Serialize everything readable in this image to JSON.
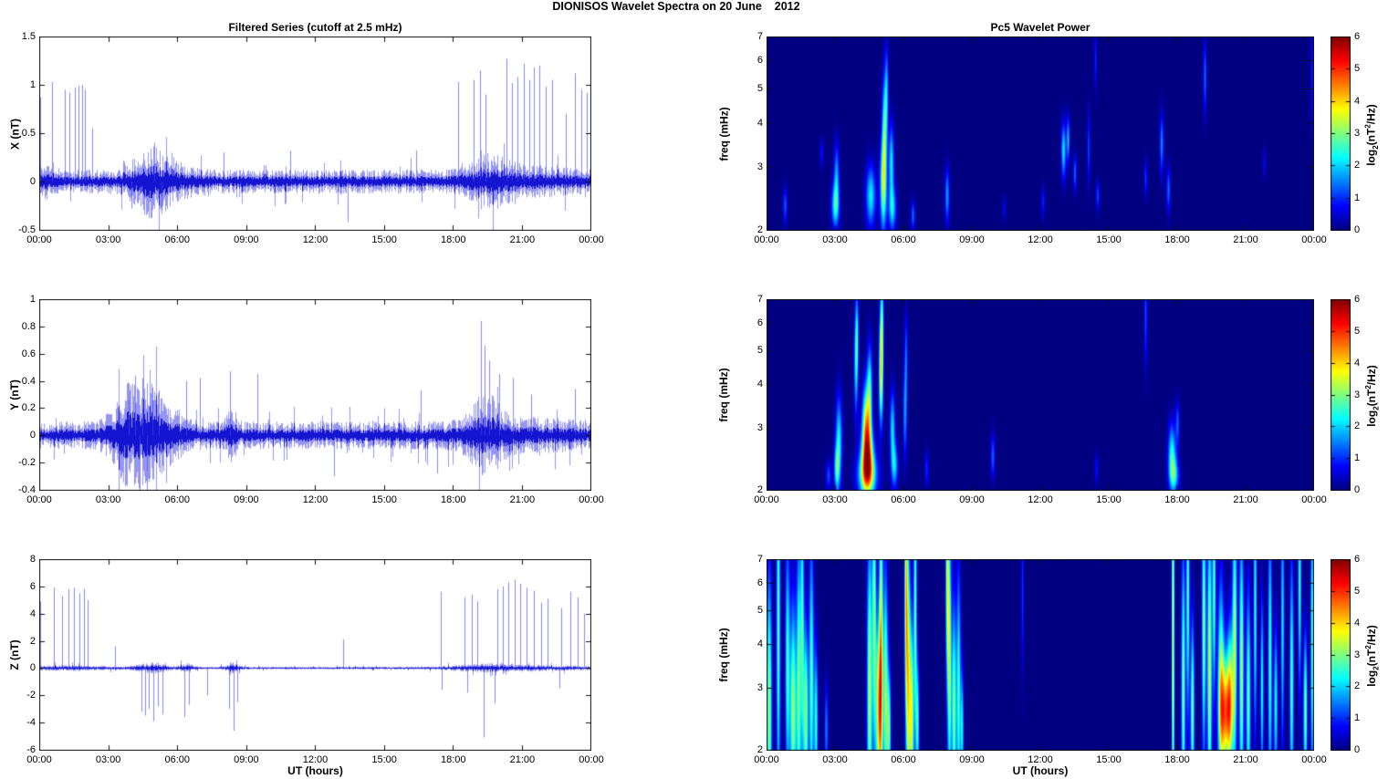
{
  "title": "DIONISOS Wavelet Spectra on 20 June    2012",
  "colors": {
    "series_line": "#0000dd",
    "axis": "#111111",
    "background": "#ffffff",
    "jet_low": "#000080",
    "jet_high": "#800000"
  },
  "x_axis": {
    "label": "UT (hours)",
    "tick_labels": [
      "00:00",
      "03:00",
      "06:00",
      "09:00",
      "12:00",
      "15:00",
      "18:00",
      "21:00",
      "00:00"
    ],
    "range_hours": [
      0,
      24
    ]
  },
  "colorbar": {
    "tick_labels": [
      "0",
      "1",
      "2",
      "3",
      "4",
      "5",
      "6"
    ],
    "range": [
      0,
      6
    ],
    "label_parts": {
      "pre": "log",
      "sub": "2",
      "mid": "(nT",
      "sup": "2",
      "post": "/Hz)"
    }
  },
  "chart_data": [
    {
      "type": "line",
      "name": "X filtered series",
      "title": "Filtered Series (cutoff at 2.5 mHz)",
      "ylabel": "X (nT)",
      "ylim": [
        -0.5,
        1.5
      ],
      "ytick_labels": [
        "1.5",
        "1",
        "0.5",
        "0",
        "-0.5"
      ],
      "ytick_values": [
        1.5,
        1,
        0.5,
        0,
        -0.5
      ],
      "noise": {
        "base": 0.085,
        "bumps": [
          {
            "c": 5.2,
            "w": 0.8,
            "a": 0.15
          },
          {
            "c": 4.6,
            "w": 0.4,
            "a": 0.06
          },
          {
            "c": 0.25,
            "w": 0.25,
            "a": 0.05
          },
          {
            "c": 19.6,
            "w": 0.6,
            "a": 0.09
          },
          {
            "c": 20.8,
            "w": 1.6,
            "a": 0.04
          }
        ]
      },
      "spikes": [
        [
          0.05,
          0.87
        ],
        [
          0.55,
          1.03
        ],
        [
          1.1,
          0.95
        ],
        [
          1.3,
          0.92
        ],
        [
          1.55,
          0.97
        ],
        [
          1.7,
          0.99
        ],
        [
          1.85,
          1.0
        ],
        [
          2.0,
          0.95
        ],
        [
          2.3,
          0.55
        ],
        [
          4.0,
          -0.28
        ],
        [
          5.0,
          0.4
        ],
        [
          5.3,
          -0.3
        ],
        [
          8.0,
          0.3
        ],
        [
          10.9,
          0.32
        ],
        [
          13.4,
          -0.42
        ],
        [
          16.4,
          0.32
        ],
        [
          18.2,
          1.03
        ],
        [
          18.9,
          1.05
        ],
        [
          19.15,
          1.15
        ],
        [
          19.4,
          0.9
        ],
        [
          20.3,
          1.27
        ],
        [
          20.55,
          1.02
        ],
        [
          20.8,
          1.08
        ],
        [
          21.05,
          1.22
        ],
        [
          21.3,
          1.05
        ],
        [
          21.5,
          1.18
        ],
        [
          21.75,
          1.2
        ],
        [
          22.0,
          0.98
        ],
        [
          22.3,
          1.05
        ],
        [
          22.9,
          0.7
        ],
        [
          23.3,
          1.12
        ],
        [
          23.55,
          0.95
        ],
        [
          23.8,
          0.92
        ],
        [
          23.95,
          0.9
        ]
      ]
    },
    {
      "type": "line",
      "name": "Y filtered series",
      "ylabel": "Y (nT)",
      "ylim": [
        -0.4,
        1
      ],
      "ytick_labels": [
        "1",
        "0.8",
        "0.6",
        "0.4",
        "0.2",
        "0",
        "-0.2",
        "-0.4"
      ],
      "ytick_values": [
        1,
        0.8,
        0.6,
        0.4,
        0.2,
        0,
        -0.2,
        -0.4
      ],
      "noise": {
        "base": 0.07,
        "bumps": [
          {
            "c": 4.6,
            "w": 0.9,
            "a": 0.2
          },
          {
            "c": 3.8,
            "w": 0.4,
            "a": 0.06
          },
          {
            "c": 8.4,
            "w": 0.2,
            "a": 0.08
          },
          {
            "c": 19.4,
            "w": 0.5,
            "a": 0.13
          },
          {
            "c": 20.8,
            "w": 1.8,
            "a": 0.03
          }
        ]
      },
      "spikes": [
        [
          3.9,
          0.38
        ],
        [
          4.15,
          0.44
        ],
        [
          4.35,
          -0.55
        ],
        [
          4.5,
          0.42
        ],
        [
          4.7,
          -0.5
        ],
        [
          4.9,
          0.35
        ],
        [
          5.2,
          0.33
        ],
        [
          6.4,
          0.4
        ],
        [
          7.0,
          0.42
        ],
        [
          8.3,
          0.47
        ],
        [
          9.5,
          0.45
        ],
        [
          12.8,
          -0.3
        ],
        [
          16.6,
          0.33
        ],
        [
          17.3,
          -0.28
        ],
        [
          19.2,
          0.84
        ],
        [
          19.35,
          0.66
        ],
        [
          19.55,
          0.55
        ],
        [
          20.0,
          0.45
        ],
        [
          20.6,
          0.42
        ],
        [
          21.4,
          0.3
        ],
        [
          23.3,
          0.34
        ]
      ]
    },
    {
      "type": "line",
      "name": "Z filtered series",
      "ylabel": "Z (nT)",
      "ylim": [
        -6,
        8
      ],
      "ytick_labels": [
        "8",
        "6",
        "4",
        "2",
        "0",
        "-2",
        "-4",
        "-6"
      ],
      "ytick_values": [
        8,
        6,
        4,
        2,
        0,
        -2,
        -4,
        -6
      ],
      "noise": {
        "base": 0.07,
        "bumps": [
          {
            "c": 1.3,
            "w": 1.3,
            "a": 0.08
          },
          {
            "c": 4.9,
            "w": 0.5,
            "a": 0.22
          },
          {
            "c": 6.4,
            "w": 0.25,
            "a": 0.18
          },
          {
            "c": 8.4,
            "w": 0.25,
            "a": 0.18
          },
          {
            "c": 19.5,
            "w": 1.2,
            "a": 0.12
          },
          {
            "c": 21.5,
            "w": 2.0,
            "a": 0.08
          }
        ]
      },
      "spikes": [
        [
          0.05,
          4.9
        ],
        [
          0.65,
          5.9
        ],
        [
          1.0,
          5.3
        ],
        [
          1.25,
          5.8
        ],
        [
          1.5,
          5.9
        ],
        [
          1.75,
          5.5
        ],
        [
          1.95,
          5.8
        ],
        [
          2.1,
          5.0
        ],
        [
          3.3,
          1.6
        ],
        [
          4.45,
          -3.2
        ],
        [
          4.6,
          -3.5
        ],
        [
          4.75,
          -3.0
        ],
        [
          4.95,
          -3.9
        ],
        [
          5.15,
          -2.8
        ],
        [
          5.35,
          -3.4
        ],
        [
          6.3,
          -3.6
        ],
        [
          6.5,
          -2.7
        ],
        [
          7.3,
          -2.0
        ],
        [
          8.25,
          -3.0
        ],
        [
          8.45,
          -4.6
        ],
        [
          8.6,
          -2.5
        ],
        [
          13.2,
          2.1
        ],
        [
          17.45,
          5.6
        ],
        [
          17.5,
          -1.6
        ],
        [
          18.5,
          5.2
        ],
        [
          18.6,
          -1.8
        ],
        [
          18.8,
          5.4
        ],
        [
          19.05,
          4.9
        ],
        [
          19.3,
          -5.1
        ],
        [
          19.8,
          -2.6
        ],
        [
          19.9,
          5.8
        ],
        [
          20.15,
          6.0
        ],
        [
          20.4,
          6.3
        ],
        [
          20.65,
          6.5
        ],
        [
          20.9,
          6.2
        ],
        [
          21.2,
          5.9
        ],
        [
          21.5,
          5.7
        ],
        [
          21.8,
          4.8
        ],
        [
          22.1,
          5.1
        ],
        [
          22.6,
          -1.5
        ],
        [
          22.7,
          4.4
        ],
        [
          23.1,
          5.6
        ],
        [
          23.4,
          5.2
        ],
        [
          23.7,
          4.0
        ]
      ]
    },
    {
      "type": "heatmap",
      "name": "X Pc5 wavelet power",
      "title": "Pc5 Wavelet Power",
      "ylabel": "freq (mHz)",
      "ylim": [
        2,
        7
      ],
      "yscale": "log2",
      "ytick_labels": [
        "7",
        "6",
        "5",
        "4",
        "3",
        "2"
      ],
      "ytick_values": [
        7,
        6,
        5,
        4,
        3,
        2
      ],
      "zlim": [
        0,
        6
      ],
      "blobs": [
        [
          0.8,
          2.35,
          0.06,
          0.12,
          1.3
        ],
        [
          2.4,
          3.3,
          0.05,
          0.1,
          0.9
        ],
        [
          3.0,
          2.35,
          0.12,
          0.15,
          2.4
        ],
        [
          3.05,
          2.9,
          0.08,
          0.2,
          1.6
        ],
        [
          4.55,
          2.5,
          0.15,
          0.2,
          2.2
        ],
        [
          5.1,
          2.7,
          0.1,
          0.3,
          3.2
        ],
        [
          5.15,
          3.9,
          0.07,
          0.35,
          2.4
        ],
        [
          5.25,
          4.9,
          0.05,
          0.3,
          1.7
        ],
        [
          5.45,
          3.1,
          0.08,
          0.25,
          2.2
        ],
        [
          5.5,
          2.3,
          0.12,
          0.15,
          2.0
        ],
        [
          6.4,
          2.2,
          0.06,
          0.1,
          1.4
        ],
        [
          7.9,
          2.5,
          0.07,
          0.18,
          1.7
        ],
        [
          10.4,
          2.3,
          0.04,
          0.08,
          0.8
        ],
        [
          12.1,
          2.4,
          0.05,
          0.1,
          1.0
        ],
        [
          13.0,
          3.35,
          0.07,
          0.18,
          2.2
        ],
        [
          13.2,
          3.6,
          0.05,
          0.15,
          1.9
        ],
        [
          13.5,
          2.9,
          0.05,
          0.12,
          1.4
        ],
        [
          14.1,
          3.4,
          0.04,
          0.25,
          1.2
        ],
        [
          14.4,
          6.0,
          0.04,
          0.2,
          1.0
        ],
        [
          14.5,
          2.5,
          0.05,
          0.1,
          1.2
        ],
        [
          16.6,
          2.8,
          0.05,
          0.12,
          1.1
        ],
        [
          17.3,
          3.5,
          0.06,
          0.2,
          1.6
        ],
        [
          17.6,
          2.6,
          0.06,
          0.15,
          1.4
        ],
        [
          19.2,
          5.4,
          0.05,
          0.25,
          1.4
        ],
        [
          21.8,
          3.1,
          0.04,
          0.1,
          0.8
        ],
        [
          23.9,
          5.5,
          0.05,
          0.4,
          0.9
        ]
      ]
    },
    {
      "type": "heatmap",
      "name": "Y Pc5 wavelet power",
      "ylabel": "freq (mHz)",
      "ylim": [
        2,
        7
      ],
      "yscale": "log2",
      "ytick_labels": [
        "7",
        "6",
        "5",
        "4",
        "3",
        "2"
      ],
      "ytick_values": [
        7,
        6,
        5,
        4,
        3,
        2
      ],
      "zlim": [
        0,
        6
      ],
      "blobs": [
        [
          2.7,
          2.2,
          0.08,
          0.1,
          1.2
        ],
        [
          3.05,
          2.3,
          0.08,
          0.15,
          2.0
        ],
        [
          3.15,
          2.75,
          0.1,
          0.3,
          2.3
        ],
        [
          3.9,
          4.6,
          0.06,
          0.35,
          2.0
        ],
        [
          3.95,
          5.6,
          0.05,
          0.3,
          1.6
        ],
        [
          4.35,
          3.2,
          0.12,
          0.25,
          3.0
        ],
        [
          4.4,
          2.5,
          0.18,
          0.22,
          4.2
        ],
        [
          4.4,
          2.2,
          0.3,
          0.15,
          2.8
        ],
        [
          4.5,
          3.9,
          0.08,
          0.3,
          2.3
        ],
        [
          5.0,
          4.0,
          0.07,
          0.3,
          2.1
        ],
        [
          5.0,
          5.0,
          0.06,
          0.35,
          2.2
        ],
        [
          5.05,
          6.2,
          0.05,
          0.3,
          1.8
        ],
        [
          5.5,
          3.0,
          0.08,
          0.25,
          2.1
        ],
        [
          5.6,
          2.35,
          0.1,
          0.15,
          1.9
        ],
        [
          6.05,
          3.3,
          0.06,
          0.3,
          1.6
        ],
        [
          6.1,
          4.8,
          0.05,
          0.3,
          1.3
        ],
        [
          7.0,
          2.3,
          0.06,
          0.12,
          1.0
        ],
        [
          9.9,
          2.5,
          0.06,
          0.15,
          1.4
        ],
        [
          14.45,
          2.3,
          0.05,
          0.1,
          0.9
        ],
        [
          16.6,
          6.3,
          0.05,
          0.35,
          1.2
        ],
        [
          17.75,
          2.55,
          0.12,
          0.2,
          2.3
        ],
        [
          17.85,
          2.2,
          0.15,
          0.12,
          2.0
        ],
        [
          18.0,
          3.1,
          0.06,
          0.15,
          1.3
        ]
      ]
    },
    {
      "type": "heatmap",
      "name": "Z Pc5 wavelet power",
      "ylabel": "freq (mHz)",
      "ylim": [
        2,
        7
      ],
      "yscale": "log2",
      "ytick_labels": [
        "7",
        "6",
        "5",
        "4",
        "3",
        "2"
      ],
      "ytick_values": [
        7,
        6,
        5,
        4,
        3,
        2
      ],
      "zlim": [
        0,
        6
      ],
      "blobs": [
        [
          0.1,
          2.6,
          0.08,
          0.9,
          3.2
        ],
        [
          0.5,
          4.5,
          0.06,
          1.2,
          2.8
        ],
        [
          0.9,
          3.5,
          0.07,
          0.8,
          2.6
        ],
        [
          1.15,
          2.6,
          0.1,
          0.7,
          3.3
        ],
        [
          1.4,
          3.0,
          0.07,
          1.0,
          3.0
        ],
        [
          1.55,
          4.8,
          0.05,
          0.9,
          2.5
        ],
        [
          1.7,
          2.5,
          0.08,
          0.6,
          3.2
        ],
        [
          1.95,
          3.2,
          0.07,
          0.9,
          2.8
        ],
        [
          2.15,
          2.4,
          0.06,
          0.5,
          2.5
        ],
        [
          2.6,
          2.3,
          0.05,
          0.3,
          1.6
        ],
        [
          4.5,
          3.0,
          0.08,
          1.0,
          3.4
        ],
        [
          4.7,
          5.2,
          0.06,
          0.9,
          3.0
        ],
        [
          4.9,
          2.6,
          0.1,
          0.6,
          4.0
        ],
        [
          5.0,
          4.2,
          0.06,
          1.0,
          3.4
        ],
        [
          5.2,
          2.9,
          0.07,
          0.8,
          3.2
        ],
        [
          5.35,
          2.3,
          0.06,
          0.4,
          2.8
        ],
        [
          6.1,
          5.8,
          0.05,
          0.8,
          3.6
        ],
        [
          6.2,
          3.0,
          0.07,
          0.9,
          3.8
        ],
        [
          6.35,
          2.5,
          0.06,
          0.6,
          3.4
        ],
        [
          6.5,
          5.0,
          0.05,
          0.9,
          2.9
        ],
        [
          6.6,
          2.4,
          0.05,
          0.4,
          2.6
        ],
        [
          7.9,
          6.3,
          0.05,
          0.7,
          3.1
        ],
        [
          8.0,
          3.6,
          0.06,
          0.9,
          3.3
        ],
        [
          8.2,
          2.6,
          0.07,
          0.7,
          3.1
        ],
        [
          8.4,
          2.9,
          0.06,
          0.8,
          2.7
        ],
        [
          8.55,
          2.3,
          0.05,
          0.4,
          2.3
        ],
        [
          11.2,
          5.5,
          0.04,
          0.5,
          1.1
        ],
        [
          17.8,
          4.0,
          0.04,
          1.4,
          3.9
        ],
        [
          18.25,
          3.0,
          0.06,
          0.9,
          3.1
        ],
        [
          18.45,
          5.5,
          0.05,
          0.8,
          2.9
        ],
        [
          18.65,
          2.6,
          0.06,
          0.6,
          3.0
        ],
        [
          19.15,
          4.6,
          0.06,
          0.9,
          3.1
        ],
        [
          19.4,
          3.4,
          0.07,
          1.0,
          3.5
        ],
        [
          19.6,
          5.8,
          0.05,
          0.7,
          2.8
        ],
        [
          19.9,
          3.0,
          0.1,
          0.7,
          3.2
        ],
        [
          20.1,
          2.55,
          0.16,
          0.35,
          4.0
        ],
        [
          20.3,
          2.8,
          0.1,
          0.5,
          3.2
        ],
        [
          20.5,
          4.2,
          0.07,
          0.9,
          3.2
        ],
        [
          20.8,
          3.4,
          0.07,
          0.9,
          3.3
        ],
        [
          21.1,
          2.8,
          0.07,
          0.7,
          2.9
        ],
        [
          21.4,
          5.0,
          0.05,
          0.8,
          2.6
        ],
        [
          21.7,
          3.0,
          0.05,
          0.6,
          2.4
        ],
        [
          22.05,
          3.6,
          0.06,
          0.9,
          2.7
        ],
        [
          22.3,
          2.7,
          0.06,
          0.5,
          2.4
        ],
        [
          22.6,
          4.6,
          0.05,
          0.8,
          2.3
        ],
        [
          23.0,
          3.1,
          0.06,
          0.8,
          2.8
        ],
        [
          23.35,
          6.0,
          0.05,
          0.7,
          2.6
        ],
        [
          23.6,
          2.6,
          0.06,
          0.5,
          3.0
        ],
        [
          23.9,
          4.0,
          0.05,
          1.0,
          2.7
        ]
      ]
    }
  ]
}
